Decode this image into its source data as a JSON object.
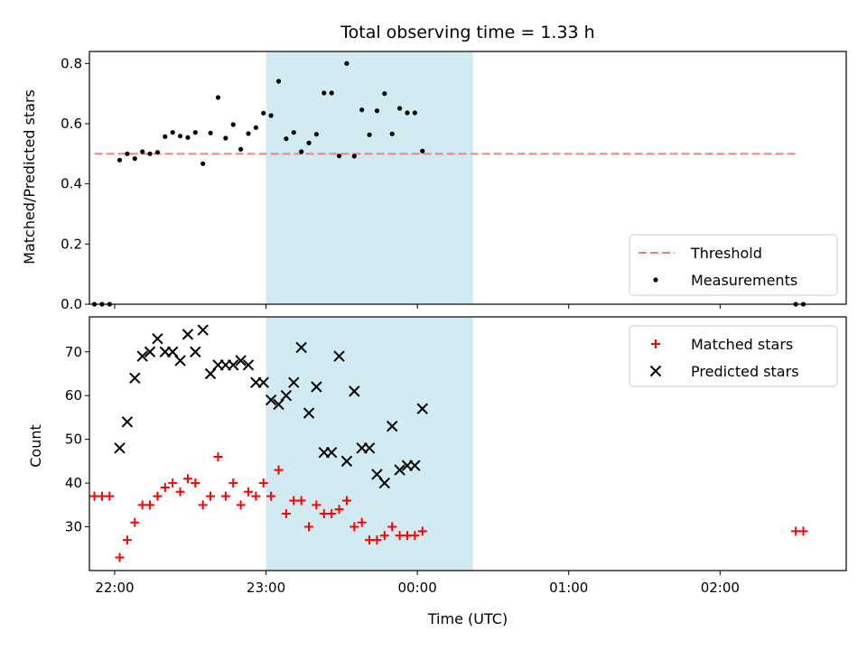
{
  "chart_data": [
    {
      "type": "scatter",
      "title": "Total observing time = 1.33 h",
      "xlabel": "",
      "ylabel": "Matched/Predicted stars",
      "xlim": [
        "21:50",
        "02:50"
      ],
      "ylim": [
        0,
        0.84
      ],
      "yticks": [
        "0.0",
        "0.2",
        "0.4",
        "0.6",
        "0.8"
      ],
      "xticks": [
        "22:00",
        "23:00",
        "00:00",
        "01:00",
        "02:00"
      ],
      "xtick_labels_shown": false,
      "highlight_span": {
        "start": "23:00",
        "end": "00:22",
        "color": "#add8e6"
      },
      "threshold": {
        "name": "Threshold",
        "value": 0.5,
        "x_range": [
          "21:52",
          "02:30"
        ],
        "color": "#f08080",
        "style": "dashed"
      },
      "legend": {
        "position": "lower-right",
        "entries": [
          "Threshold",
          "Measurements"
        ]
      },
      "series": [
        {
          "name": "Measurements",
          "color": "#000000",
          "marker": "dot",
          "points": [
            [
              "21:52",
              0.0
            ],
            [
              "21:55",
              0.0
            ],
            [
              "21:58",
              0.0
            ],
            [
              "22:02",
              0.479
            ],
            [
              "22:05",
              0.5
            ],
            [
              "22:08",
              0.484
            ],
            [
              "22:11",
              0.507
            ],
            [
              "22:14",
              0.5
            ],
            [
              "22:17",
              0.505
            ],
            [
              "22:20",
              0.557
            ],
            [
              "22:23",
              0.571
            ],
            [
              "22:26",
              0.559
            ],
            [
              "22:29",
              0.554
            ],
            [
              "22:32",
              0.571
            ],
            [
              "22:35",
              0.467
            ],
            [
              "22:38",
              0.569
            ],
            [
              "22:41",
              0.687
            ],
            [
              "22:44",
              0.552
            ],
            [
              "22:47",
              0.597
            ],
            [
              "22:50",
              0.515
            ],
            [
              "22:53",
              0.567
            ],
            [
              "22:56",
              0.587
            ],
            [
              "22:59",
              0.635
            ],
            [
              "23:02",
              0.627
            ],
            [
              "23:05",
              0.741
            ],
            [
              "23:08",
              0.55
            ],
            [
              "23:11",
              0.571
            ],
            [
              "23:14",
              0.507
            ],
            [
              "23:17",
              0.536
            ],
            [
              "23:20",
              0.565
            ],
            [
              "23:23",
              0.702
            ],
            [
              "23:26",
              0.702
            ],
            [
              "23:29",
              0.493
            ],
            [
              "23:32",
              0.8
            ],
            [
              "23:35",
              0.492
            ],
            [
              "23:38",
              0.646
            ],
            [
              "23:41",
              0.563
            ],
            [
              "23:44",
              0.643
            ],
            [
              "23:47",
              0.7
            ],
            [
              "23:50",
              0.566
            ],
            [
              "23:53",
              0.651
            ],
            [
              "23:56",
              0.636
            ],
            [
              "23:59",
              0.636
            ],
            [
              "00:02",
              0.509
            ],
            [
              "02:30",
              0.0
            ],
            [
              "02:33",
              0.0
            ]
          ]
        }
      ]
    },
    {
      "type": "scatter",
      "title": "",
      "xlabel": "Time (UTC)",
      "ylabel": "Count",
      "xlim": [
        "21:50",
        "02:50"
      ],
      "ylim": [
        20,
        78
      ],
      "yticks": [
        "30",
        "40",
        "50",
        "60",
        "70"
      ],
      "xticks": [
        "22:00",
        "23:00",
        "00:00",
        "01:00",
        "02:00"
      ],
      "highlight_span": {
        "start": "23:00",
        "end": "00:22",
        "color": "#add8e6"
      },
      "legend": {
        "position": "top-right",
        "entries": [
          "Matched stars",
          "Predicted stars"
        ]
      },
      "series": [
        {
          "name": "Matched stars",
          "color": "#ff0000",
          "marker": "plus",
          "points": [
            [
              "21:52",
              37
            ],
            [
              "21:55",
              37
            ],
            [
              "21:58",
              37
            ],
            [
              "22:02",
              23
            ],
            [
              "22:05",
              27
            ],
            [
              "22:08",
              31
            ],
            [
              "22:11",
              35
            ],
            [
              "22:14",
              35
            ],
            [
              "22:17",
              37
            ],
            [
              "22:20",
              39
            ],
            [
              "22:23",
              40
            ],
            [
              "22:26",
              38
            ],
            [
              "22:29",
              41
            ],
            [
              "22:32",
              40
            ],
            [
              "22:35",
              35
            ],
            [
              "22:38",
              37
            ],
            [
              "22:41",
              46
            ],
            [
              "22:44",
              37
            ],
            [
              "22:47",
              40
            ],
            [
              "22:50",
              35
            ],
            [
              "22:53",
              38
            ],
            [
              "22:56",
              37
            ],
            [
              "22:59",
              40
            ],
            [
              "23:02",
              37
            ],
            [
              "23:05",
              43
            ],
            [
              "23:08",
              33
            ],
            [
              "23:11",
              36
            ],
            [
              "23:14",
              36
            ],
            [
              "23:17",
              30
            ],
            [
              "23:20",
              35
            ],
            [
              "23:23",
              33
            ],
            [
              "23:26",
              33
            ],
            [
              "23:29",
              34
            ],
            [
              "23:32",
              36
            ],
            [
              "23:35",
              30
            ],
            [
              "23:38",
              31
            ],
            [
              "23:41",
              27
            ],
            [
              "23:44",
              27
            ],
            [
              "23:47",
              28
            ],
            [
              "23:50",
              30
            ],
            [
              "23:53",
              28
            ],
            [
              "23:56",
              28
            ],
            [
              "23:59",
              28
            ],
            [
              "00:02",
              29
            ],
            [
              "02:30",
              29
            ],
            [
              "02:33",
              29
            ]
          ]
        },
        {
          "name": "Predicted stars",
          "color": "#000000",
          "marker": "x",
          "points": [
            [
              "22:02",
              48
            ],
            [
              "22:05",
              54
            ],
            [
              "22:08",
              64
            ],
            [
              "22:11",
              69
            ],
            [
              "22:14",
              70
            ],
            [
              "22:17",
              73
            ],
            [
              "22:20",
              70
            ],
            [
              "22:23",
              70
            ],
            [
              "22:26",
              68
            ],
            [
              "22:29",
              74
            ],
            [
              "22:32",
              70
            ],
            [
              "22:35",
              75
            ],
            [
              "22:38",
              65
            ],
            [
              "22:41",
              67
            ],
            [
              "22:44",
              67
            ],
            [
              "22:47",
              67
            ],
            [
              "22:50",
              68
            ],
            [
              "22:53",
              67
            ],
            [
              "22:56",
              63
            ],
            [
              "22:59",
              63
            ],
            [
              "23:02",
              59
            ],
            [
              "23:05",
              58
            ],
            [
              "23:08",
              60
            ],
            [
              "23:11",
              63
            ],
            [
              "23:14",
              71
            ],
            [
              "23:17",
              56
            ],
            [
              "23:20",
              62
            ],
            [
              "23:23",
              47
            ],
            [
              "23:26",
              47
            ],
            [
              "23:29",
              69
            ],
            [
              "23:32",
              45
            ],
            [
              "23:35",
              61
            ],
            [
              "23:38",
              48
            ],
            [
              "23:41",
              48
            ],
            [
              "23:44",
              42
            ],
            [
              "23:47",
              40
            ],
            [
              "23:50",
              53
            ],
            [
              "23:53",
              43
            ],
            [
              "23:56",
              44
            ],
            [
              "23:59",
              44
            ],
            [
              "00:02",
              57
            ]
          ]
        }
      ]
    }
  ]
}
